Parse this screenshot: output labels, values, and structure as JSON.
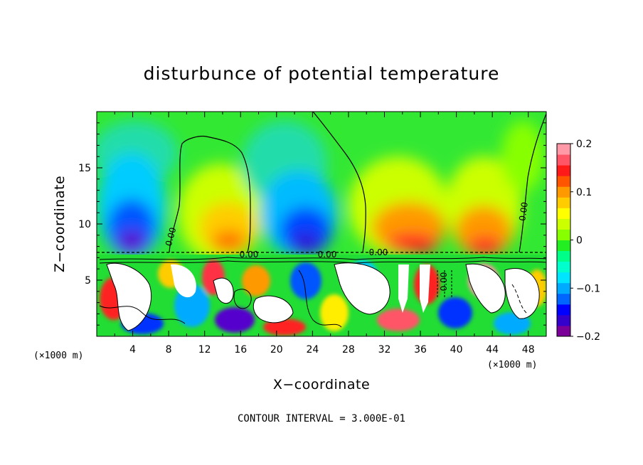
{
  "chart_data": {
    "type": "heatmap",
    "title": "disturbunce of potential temperature",
    "xlabel": "X−coordinate",
    "ylabel": "Z−coordinate",
    "x_unit": "(×1000 m)",
    "y_unit": "(×1000 m)",
    "xlim": [
      0,
      50
    ],
    "ylim": [
      0,
      20
    ],
    "x_ticks": [
      4,
      8,
      12,
      16,
      20,
      24,
      28,
      32,
      36,
      40,
      44,
      48
    ],
    "x_tick_labels": [
      "4",
      "8",
      "12",
      "16",
      "20",
      "24",
      "28",
      "32",
      "36",
      "40",
      "44",
      "48"
    ],
    "y_ticks": [
      5,
      10,
      15
    ],
    "y_tick_labels": [
      "5",
      "10",
      "15"
    ],
    "colorbar": {
      "range": [
        -0.2,
        0.2
      ],
      "ticks": [
        0.2,
        0.1,
        0,
        -0.1,
        -0.2
      ],
      "tick_labels": [
        "0.2",
        "0.1",
        "0",
        "−0.1",
        "−0.2"
      ],
      "colors": [
        "#7a0099",
        "#3300cc",
        "#0000ff",
        "#0066ff",
        "#00aaff",
        "#00e5ff",
        "#00ffcc",
        "#00ff88",
        "#22ee22",
        "#88ff00",
        "#ccff00",
        "#ffff00",
        "#ffcc00",
        "#ff9900",
        "#ff5500",
        "#ff1a1a",
        "#ff5566",
        "#ff99a8"
      ]
    },
    "contour_labels": [
      "0.00",
      "0.00",
      "0.00",
      "0.00",
      "0.00",
      "0.00"
    ],
    "footer": "CONTOUR INTERVAL = 3.000E-01",
    "field": {
      "upper_layer_blobs": [
        {
          "x": 5,
          "z_top": 14.5,
          "value": -0.2
        },
        {
          "x": 13,
          "z_top": 14,
          "value": 0.14
        },
        {
          "x": 23.5,
          "z_top": 16,
          "value": -0.15
        },
        {
          "x": 35,
          "z_top": 13,
          "value": 0.17
        },
        {
          "x": 44,
          "z_top": 14,
          "value": 0.15
        }
      ],
      "boundary_layer_top": 7.3
    }
  }
}
